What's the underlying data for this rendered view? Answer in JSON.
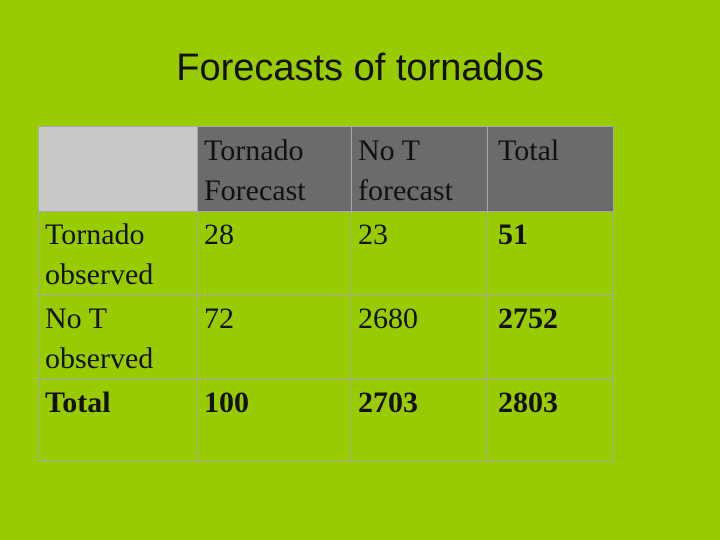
{
  "title": "Forecasts of tornados",
  "table": {
    "headers": {
      "forecast_tornado": [
        "Tornado",
        "Forecast"
      ],
      "no_t_forecast": [
        "No T",
        "forecast"
      ],
      "total": "Total"
    },
    "rows": [
      {
        "label": [
          "Tornado",
          "observed"
        ],
        "tornado_forecast": "28",
        "no_t_forecast": "23",
        "total": "51"
      },
      {
        "label": [
          "No T",
          "observed"
        ],
        "tornado_forecast": "72",
        "no_t_forecast": "2680",
        "total": "2752"
      },
      {
        "label": [
          "Total"
        ],
        "tornado_forecast": "100",
        "no_t_forecast": "2703",
        "total": "2803"
      }
    ]
  },
  "colors": {
    "background": "#99cc00",
    "header_fill": "#6b6b6b",
    "corner_fill": "#c8c8c8",
    "grid_line": "#a8a8a8"
  }
}
